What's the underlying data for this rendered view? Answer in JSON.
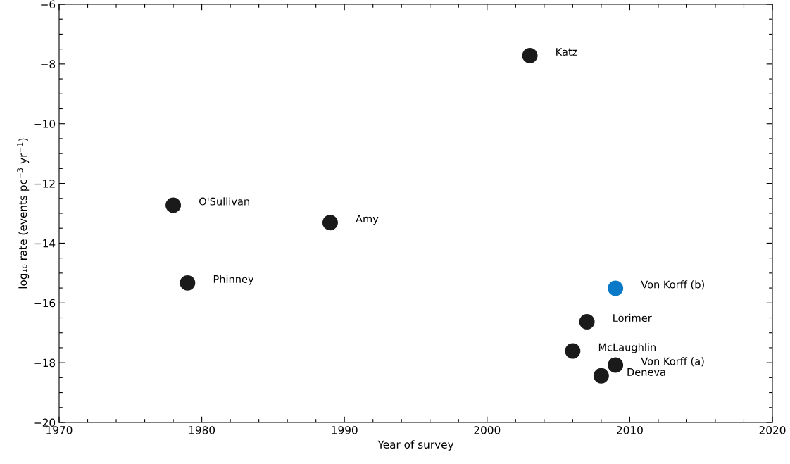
{
  "chart_data": {
    "type": "scatter",
    "xlabel": "Year of survey",
    "ylabel": "log₁₀ rate (events pc$^{−3}$ yr$^{−1}$)",
    "series": [
      {
        "name": "O'Sullivan",
        "color": "#1a1a1a",
        "x": [
          1978
        ],
        "values": [
          -12.73
        ]
      },
      {
        "name": "Phinney",
        "color": "#1a1a1a",
        "x": [
          1979
        ],
        "values": [
          -15.33
        ]
      },
      {
        "name": "Amy",
        "color": "#1a1a1a",
        "x": [
          1989
        ],
        "values": [
          -13.31
        ]
      },
      {
        "name": "Katz",
        "color": "#1a1a1a",
        "x": [
          2003
        ],
        "values": [
          -7.72
        ]
      },
      {
        "name": "Von Korff (b)",
        "color": "#0a7ac8",
        "x": [
          2009
        ],
        "values": [
          -15.51
        ]
      },
      {
        "name": "Lorimer",
        "color": "#1a1a1a",
        "x": [
          2007
        ],
        "values": [
          -16.63
        ]
      },
      {
        "name": "McLaughlin",
        "color": "#1a1a1a",
        "x": [
          2006
        ],
        "values": [
          -17.61
        ]
      },
      {
        "name": "Von Korff (a)",
        "color": "#1a1a1a",
        "x": [
          2009
        ],
        "values": [
          -18.08
        ]
      },
      {
        "name": "Deneva",
        "color": "#1a1a1a",
        "x": [
          2008
        ],
        "values": [
          -18.44
        ]
      }
    ],
    "marker": "circle",
    "xlim": [
      1970,
      2020
    ],
    "ylim": [
      -20,
      -6
    ],
    "xticks": [
      1970,
      {
        "value": 1972,
        "label": null
      },
      {
        "value": 1974,
        "label": null
      },
      {
        "value": 1976,
        "label": null
      },
      {
        "value": 1978,
        "label": null
      },
      1980,
      {
        "value": 1982,
        "label": null
      },
      {
        "value": 1984,
        "label": null
      },
      {
        "value": 1986,
        "label": null
      },
      {
        "value": 1988,
        "label": null
      },
      1990,
      {
        "value": 1992,
        "label": null
      },
      {
        "value": 1994,
        "label": null
      },
      {
        "value": 1996,
        "label": null
      },
      {
        "value": 1998,
        "label": null
      },
      2000,
      {
        "value": 2002,
        "label": null
      },
      {
        "value": 2004,
        "label": null
      },
      {
        "value": 2006,
        "label": null
      },
      {
        "value": 2008,
        "label": null
      },
      2010,
      {
        "value": 2012,
        "label": null
      },
      {
        "value": 2014,
        "label": null
      },
      {
        "value": 2016,
        "label": null
      },
      {
        "value": 2018,
        "label": null
      },
      2020
    ],
    "yticks": [
      -20,
      {
        "value": -19.5,
        "label": null
      },
      {
        "value": -19,
        "label": null
      },
      {
        "value": -18.5,
        "label": null
      },
      -18,
      {
        "value": -17.5,
        "label": null
      },
      {
        "value": -17,
        "label": null
      },
      {
        "value": -16.5,
        "label": null
      },
      -16,
      {
        "value": -15.5,
        "label": null
      },
      {
        "value": -15,
        "label": null
      },
      {
        "value": -14.5,
        "label": null
      },
      -14,
      {
        "value": -13.5,
        "label": null
      },
      {
        "value": -13,
        "label": null
      },
      {
        "value": -12.5,
        "label": null
      },
      -12,
      {
        "value": -11.5,
        "label": null
      },
      {
        "value": -11,
        "label": null
      },
      {
        "value": -10.5,
        "label": null
      },
      -10,
      {
        "value": -9.5,
        "label": null
      },
      {
        "value": -9,
        "label": null
      },
      {
        "value": -8.5,
        "label": null
      },
      -8,
      {
        "value": -7.5,
        "label": null
      },
      {
        "value": -7,
        "label": null
      },
      {
        "value": -6.5,
        "label": null
      },
      -6
    ],
    "grid": false,
    "legend": false
  }
}
